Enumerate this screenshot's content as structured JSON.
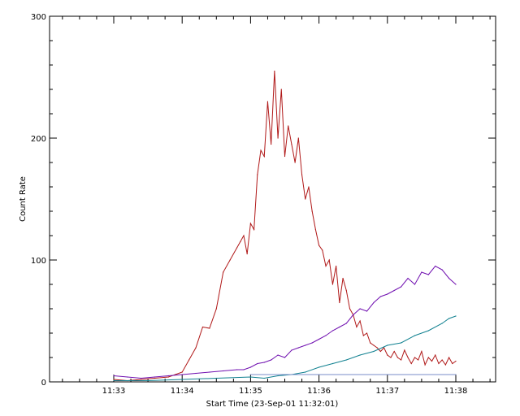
{
  "chart_data": {
    "type": "line",
    "title": "",
    "xlabel": "Start Time (23-Sep-01 11:32:01)",
    "ylabel": "Count Rate",
    "xlim_minutes_after_1133": [
      -0.92,
      5.6
    ],
    "ylim": [
      0,
      300
    ],
    "x_ticks": [
      {
        "label": "11:33",
        "minutes_after_1133": 0
      },
      {
        "label": "11:34",
        "minutes_after_1133": 1
      },
      {
        "label": "11:35",
        "minutes_after_1133": 2
      },
      {
        "label": "11:36",
        "minutes_after_1133": 3
      },
      {
        "label": "11:37",
        "minutes_after_1133": 4
      },
      {
        "label": "11:38",
        "minutes_after_1133": 5
      }
    ],
    "y_ticks": [
      0,
      100,
      200,
      300
    ],
    "grid": false,
    "legend": "none",
    "series": [
      {
        "color": "#b01818",
        "x_minutes_after_1133": [
          0.0,
          0.2,
          0.4,
          0.6,
          0.8,
          0.9,
          1.0,
          1.1,
          1.2,
          1.3,
          1.4,
          1.5,
          1.6,
          1.7,
          1.8,
          1.85,
          1.9,
          1.95,
          2.0,
          2.05,
          2.1,
          2.15,
          2.2,
          2.25,
          2.3,
          2.35,
          2.4,
          2.45,
          2.5,
          2.55,
          2.6,
          2.65,
          2.7,
          2.75,
          2.8,
          2.85,
          2.9,
          2.95,
          3.0,
          3.05,
          3.1,
          3.15,
          3.2,
          3.25,
          3.3,
          3.35,
          3.4,
          3.45,
          3.5,
          3.55,
          3.6,
          3.65,
          3.7,
          3.75,
          3.8,
          3.85,
          3.9,
          3.95,
          4.0,
          4.05,
          4.1,
          4.15,
          4.2,
          4.25,
          4.3,
          4.35,
          4.4,
          4.45,
          4.5,
          4.55,
          4.6,
          4.65,
          4.7,
          4.75,
          4.8,
          4.85,
          4.9,
          4.95,
          5.0
        ],
        "values": [
          2,
          1,
          2,
          3,
          4,
          6,
          8,
          18,
          28,
          45,
          44,
          60,
          90,
          100,
          110,
          115,
          120,
          105,
          130,
          125,
          170,
          190,
          185,
          230,
          195,
          255,
          200,
          240,
          185,
          210,
          195,
          180,
          200,
          170,
          150,
          160,
          140,
          125,
          112,
          108,
          95,
          100,
          80,
          95,
          65,
          85,
          75,
          60,
          55,
          45,
          50,
          38,
          40,
          32,
          30,
          28,
          25,
          28,
          22,
          20,
          25,
          20,
          18,
          26,
          20,
          15,
          20,
          18,
          25,
          14,
          20,
          17,
          22,
          15,
          18,
          14,
          20,
          15,
          17
        ]
      },
      {
        "color": "#7010b0",
        "x_minutes_after_1133": [
          0.0,
          0.2,
          0.4,
          0.6,
          0.8,
          1.0,
          1.2,
          1.4,
          1.6,
          1.8,
          1.9,
          2.0,
          2.1,
          2.2,
          2.3,
          2.4,
          2.5,
          2.6,
          2.7,
          2.8,
          2.9,
          3.0,
          3.1,
          3.2,
          3.3,
          3.4,
          3.5,
          3.6,
          3.7,
          3.8,
          3.9,
          4.0,
          4.1,
          4.2,
          4.3,
          4.4,
          4.5,
          4.6,
          4.7,
          4.8,
          4.9,
          5.0
        ],
        "values": [
          5,
          4,
          3,
          4,
          5,
          6,
          7,
          8,
          9,
          10,
          10,
          12,
          15,
          16,
          18,
          22,
          20,
          26,
          28,
          30,
          32,
          35,
          38,
          42,
          45,
          48,
          55,
          60,
          58,
          65,
          70,
          72,
          75,
          78,
          85,
          80,
          90,
          88,
          95,
          92,
          85,
          80
        ]
      },
      {
        "color": "#108090",
        "x_minutes_after_1133": [
          0.0,
          0.5,
          1.0,
          1.5,
          2.0,
          2.2,
          2.4,
          2.6,
          2.8,
          3.0,
          3.2,
          3.4,
          3.6,
          3.8,
          4.0,
          4.2,
          4.4,
          4.6,
          4.8,
          4.9,
          5.0
        ],
        "values": [
          1,
          1,
          2,
          3,
          4,
          3,
          5,
          6,
          8,
          12,
          15,
          18,
          22,
          25,
          30,
          32,
          38,
          42,
          48,
          52,
          54
        ]
      },
      {
        "color": "#7a8ec8",
        "x_minutes_after_1133": [
          2.0,
          5.0
        ],
        "values": [
          6,
          6
        ]
      }
    ]
  }
}
